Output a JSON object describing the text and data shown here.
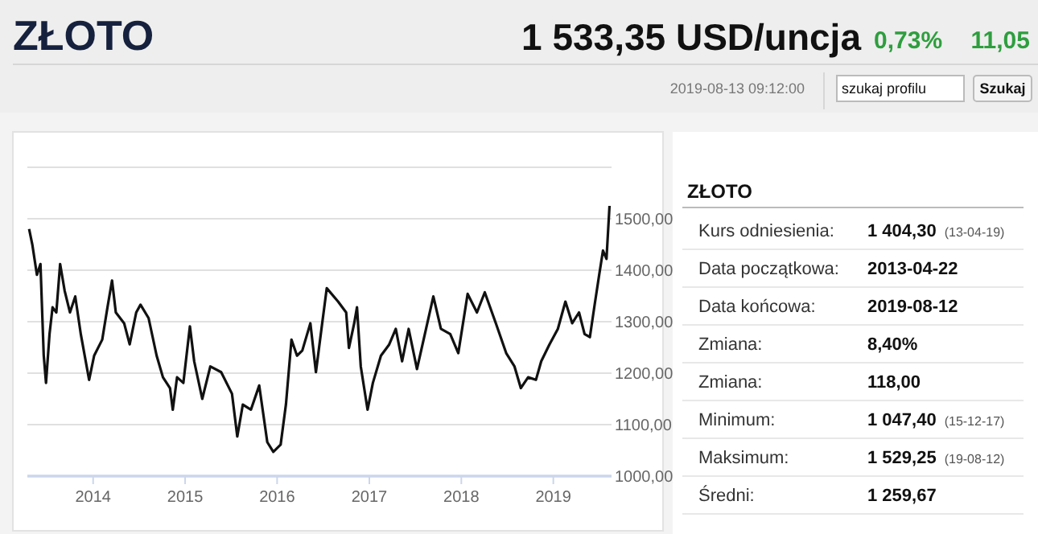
{
  "chart_data": [
    {
      "type": "line",
      "title": "ZŁOTO",
      "subtitle": "1 533,35 USD/uncja",
      "annotations": [
        "0,73%",
        "11,05",
        "2019-08-13 09:12:00",
        "szukaj profilu",
        "Szukaj"
      ],
      "xlim": [
        "2013-04-15",
        "2019-08-20"
      ],
      "xticks": [
        "2014",
        "2015",
        "2016",
        "2017",
        "2018",
        "2019"
      ],
      "ylim": [
        1000,
        1600
      ],
      "yticks": [
        {
          "value": 1000,
          "label": "1000,00"
        },
        {
          "value": 1100,
          "label": "1100,00"
        },
        {
          "value": 1200,
          "label": "1200,00"
        },
        {
          "value": 1300,
          "label": "1300,00"
        },
        {
          "value": 1400,
          "label": "1400,00"
        },
        {
          "value": 1500,
          "label": "1500,00"
        },
        {
          "value": 1600,
          "label": null
        }
      ],
      "grid": "y",
      "x": [
        "2013-04-22",
        "2013-05-05",
        "2013-05-23",
        "2013-06-06",
        "2013-06-19",
        "2013-06-28",
        "2013-07-12",
        "2013-07-24",
        "2013-08-08",
        "2013-08-23",
        "2013-09-10",
        "2013-10-01",
        "2013-10-22",
        "2013-11-13",
        "2013-12-16",
        "2014-01-05",
        "2014-02-06",
        "2014-02-27",
        "2014-03-17",
        "2014-04-01",
        "2014-05-04",
        "2014-05-26",
        "2014-06-21",
        "2014-07-08",
        "2014-08-09",
        "2014-09-10",
        "2014-10-05",
        "2014-11-02",
        "2014-11-13",
        "2014-11-30",
        "2014-12-25",
        "2015-01-20",
        "2015-02-06",
        "2015-03-10",
        "2015-04-11",
        "2015-05-24",
        "2015-07-06",
        "2015-07-27",
        "2015-08-18",
        "2015-09-19",
        "2015-10-22",
        "2015-11-23",
        "2015-12-17",
        "2016-01-15",
        "2016-02-05",
        "2016-02-27",
        "2016-03-20",
        "2016-04-10",
        "2016-05-12",
        "2016-06-03",
        "2016-06-25",
        "2016-07-16",
        "2016-08-30",
        "2016-10-01",
        "2016-10-12",
        "2016-11-02",
        "2016-11-13",
        "2016-11-28",
        "2016-12-25",
        "2017-01-15",
        "2017-02-16",
        "2017-03-20",
        "2017-04-16",
        "2017-05-11",
        "2017-06-06",
        "2017-07-09",
        "2017-08-14",
        "2017-09-12",
        "2017-10-12",
        "2017-11-18",
        "2017-12-20",
        "2018-01-26",
        "2018-03-04",
        "2018-04-04",
        "2018-05-18",
        "2018-06-28",
        "2018-07-31",
        "2018-08-25",
        "2018-09-23",
        "2018-10-24",
        "2018-11-14",
        "2018-12-16",
        "2019-01-19",
        "2019-02-18",
        "2019-03-17",
        "2019-04-13",
        "2019-05-05",
        "2019-05-26",
        "2019-06-14",
        "2019-07-02",
        "2019-07-17",
        "2019-07-31",
        "2019-08-12"
      ],
      "series": [
        {
          "color": "#111111",
          "values": [
            1480,
            1449,
            1391,
            1412,
            1234,
            1181,
            1276,
            1328,
            1318,
            1412,
            1360,
            1318,
            1349,
            1276,
            1187,
            1234,
            1265,
            1328,
            1380,
            1318,
            1297,
            1256,
            1318,
            1333,
            1307,
            1234,
            1192,
            1171,
            1129,
            1192,
            1181,
            1291,
            1223,
            1150,
            1213,
            1202,
            1160,
            1077,
            1139,
            1129,
            1176,
            1066,
            1047,
            1061,
            1139,
            1265,
            1234,
            1244,
            1297,
            1202,
            1286,
            1365,
            1339,
            1318,
            1249,
            1297,
            1328,
            1213,
            1129,
            1181,
            1234,
            1255,
            1286,
            1223,
            1286,
            1208,
            1286,
            1349,
            1286,
            1276,
            1239,
            1354,
            1318,
            1357,
            1297,
            1239,
            1213,
            1171,
            1192,
            1187,
            1223,
            1255,
            1286,
            1339,
            1297,
            1318,
            1276,
            1270,
            1333,
            1391,
            1438,
            1422,
            1525
          ]
        }
      ]
    },
    {
      "type": "other",
      "title": "ZŁOTO",
      "annotations": [
        "Kurs odniesienia: 1 404,30 (13-04-19)",
        "Data początkowa: 2013-04-22",
        "Data końcowa: 2019-08-12",
        "Zmiana: 8,40%",
        "Zmiana: 118,00",
        "Minimum: 1 047,40 (15-12-17)",
        "Maksimum: 1 529,25 (19-08-12)",
        "Średni: 1 259,67"
      ]
    }
  ]
}
